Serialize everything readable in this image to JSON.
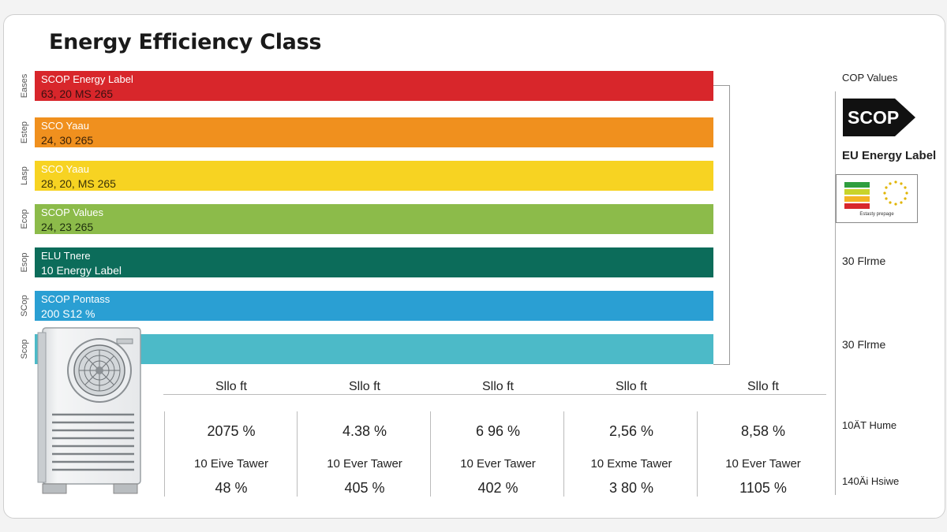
{
  "title": "Energy Efficiency Class",
  "chart_data": {
    "type": "bar",
    "title": "Energy Efficiency Class",
    "bars": [
      {
        "label": "SCOP Energy Label",
        "sublabel": "63, 20 MS 265",
        "side": "Eases",
        "color": "#d8262b",
        "sub_color": "#3a1010",
        "value": 1
      },
      {
        "label": "SCO Yaau",
        "sublabel": "24, 30 265",
        "side": "Estep",
        "color": "#f0901e",
        "sub_color": "#3a2208",
        "value": 1
      },
      {
        "label": "SCO Yaau",
        "sublabel": "28, 20, MS 265",
        "side": "Lasp",
        "color": "#f7d322",
        "sub_color": "#3a3208",
        "value": 1
      },
      {
        "label": "SCOP Values",
        "sublabel": "24, 23 265",
        "side": "Ecop",
        "color": "#8cbb4a",
        "sub_color": "#1d2e0c",
        "value": 1
      },
      {
        "label": "ELU Tnere",
        "sublabel": "10 Energy Label",
        "side": "Esop",
        "color": "#0c6c5a",
        "sub_color": "#ffffff",
        "value": 1
      },
      {
        "label": "SCOP Pontass",
        "sublabel": "200 S12 %",
        "side": "SCop",
        "color": "#2a9fd3",
        "sub_color": "#ffffff",
        "value": 1
      },
      {
        "label": "",
        "sublabel": "",
        "side": "Scop",
        "color": "#4cbac8",
        "sub_color": "#ffffff",
        "value": 1
      }
    ],
    "table": {
      "header": "Sllo ft",
      "columns": [
        {
          "v1": "2075 %",
          "v2": "10 Eive Tawer",
          "v3": "48 %"
        },
        {
          "v1": "4.38 %",
          "v2": "10 Ever Tawer",
          "v3": "405 %"
        },
        {
          "v1": "6 96 %",
          "v2": "10 Ever Tawer",
          "v3": "402 %"
        },
        {
          "v1": "2,56 %",
          "v2": "10 Exme Tawer",
          "v3": "3 80 %"
        },
        {
          "v1": "8,58 %",
          "v2": "10 Ever Tawer",
          "v3": "1105 %"
        }
      ]
    }
  },
  "right_panel": {
    "cop_values": "COP Values",
    "scop": "SCOP",
    "eu_label": "EU Energy Label",
    "eu_box_caption": "Estasty prepage",
    "items": [
      "30 Flrme",
      "30 Flrme",
      "10ÄT Hume",
      "140Äi Hsiwe"
    ]
  }
}
